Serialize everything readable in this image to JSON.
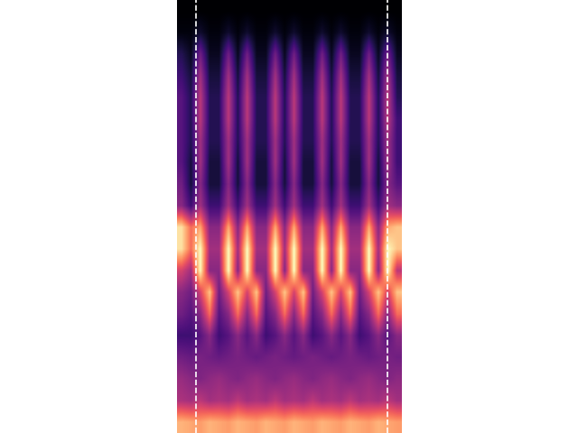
{
  "chart_data": {
    "type": "heatmap",
    "color": "magma",
    "tick_labels": false,
    "line_style": "dashed",
    "line_color": "white",
    "vlines": [
      1.5,
      22.0
    ],
    "cells": [
      [
        0.03,
        0.03,
        0.03,
        0.03,
        0.03,
        0.03,
        0.03,
        0.03,
        0.03,
        0.03,
        0.03,
        0.03,
        0.03,
        0.03,
        0.03,
        0.03,
        0.03,
        0.03,
        0.03,
        0.03,
        0.03,
        0.03,
        0.03,
        0.03
      ],
      [
        0.05,
        0.05,
        0.1,
        0.05,
        0.05,
        0.1,
        0.05,
        0.1,
        0.05,
        0.05,
        0.1,
        0.05,
        0.1,
        0.05,
        0.05,
        0.1,
        0.05,
        0.1,
        0.05,
        0.05,
        0.1,
        0.05,
        0.1,
        0.05
      ],
      [
        0.15,
        0.08,
        0.3,
        0.08,
        0.08,
        0.3,
        0.08,
        0.3,
        0.08,
        0.08,
        0.3,
        0.08,
        0.3,
        0.08,
        0.08,
        0.3,
        0.08,
        0.3,
        0.08,
        0.08,
        0.3,
        0.08,
        0.3,
        0.08
      ],
      [
        0.2,
        0.12,
        0.4,
        0.12,
        0.12,
        0.4,
        0.12,
        0.4,
        0.12,
        0.12,
        0.4,
        0.12,
        0.4,
        0.12,
        0.12,
        0.4,
        0.12,
        0.4,
        0.12,
        0.12,
        0.4,
        0.12,
        0.4,
        0.12
      ],
      [
        0.25,
        0.15,
        0.45,
        0.15,
        0.15,
        0.45,
        0.15,
        0.45,
        0.15,
        0.15,
        0.45,
        0.15,
        0.45,
        0.15,
        0.15,
        0.45,
        0.15,
        0.45,
        0.15,
        0.15,
        0.45,
        0.15,
        0.45,
        0.15
      ],
      [
        0.25,
        0.15,
        0.45,
        0.15,
        0.15,
        0.45,
        0.15,
        0.45,
        0.15,
        0.15,
        0.45,
        0.15,
        0.45,
        0.15,
        0.15,
        0.45,
        0.15,
        0.45,
        0.15,
        0.15,
        0.45,
        0.15,
        0.45,
        0.2
      ],
      [
        0.25,
        0.15,
        0.4,
        0.15,
        0.15,
        0.4,
        0.15,
        0.4,
        0.15,
        0.15,
        0.4,
        0.15,
        0.4,
        0.15,
        0.15,
        0.4,
        0.15,
        0.4,
        0.15,
        0.15,
        0.4,
        0.15,
        0.4,
        0.2
      ],
      [
        0.25,
        0.12,
        0.4,
        0.12,
        0.12,
        0.4,
        0.12,
        0.4,
        0.12,
        0.12,
        0.4,
        0.12,
        0.4,
        0.12,
        0.12,
        0.4,
        0.12,
        0.4,
        0.12,
        0.12,
        0.4,
        0.12,
        0.4,
        0.2
      ],
      [
        0.3,
        0.12,
        0.35,
        0.12,
        0.12,
        0.35,
        0.12,
        0.35,
        0.12,
        0.12,
        0.35,
        0.12,
        0.35,
        0.12,
        0.12,
        0.35,
        0.12,
        0.35,
        0.12,
        0.12,
        0.35,
        0.12,
        0.35,
        0.25
      ],
      [
        0.35,
        0.2,
        0.4,
        0.2,
        0.2,
        0.4,
        0.2,
        0.4,
        0.2,
        0.2,
        0.4,
        0.2,
        0.4,
        0.2,
        0.2,
        0.4,
        0.2,
        0.4,
        0.2,
        0.2,
        0.4,
        0.2,
        0.4,
        0.35
      ],
      [
        0.8,
        0.6,
        0.7,
        0.35,
        0.35,
        0.7,
        0.35,
        0.7,
        0.35,
        0.35,
        0.7,
        0.35,
        0.7,
        0.35,
        0.35,
        0.7,
        0.35,
        0.7,
        0.35,
        0.35,
        0.7,
        0.35,
        0.7,
        0.75
      ],
      [
        0.8,
        0.6,
        0.85,
        0.4,
        0.4,
        0.85,
        0.4,
        0.85,
        0.4,
        0.4,
        0.85,
        0.4,
        0.85,
        0.4,
        0.4,
        0.85,
        0.4,
        0.85,
        0.4,
        0.4,
        0.85,
        0.4,
        0.85,
        0.75
      ],
      [
        0.5,
        0.4,
        0.85,
        0.35,
        0.35,
        0.85,
        0.35,
        0.85,
        0.35,
        0.35,
        0.85,
        0.35,
        0.85,
        0.35,
        0.35,
        0.85,
        0.35,
        0.85,
        0.35,
        0.35,
        0.85,
        0.35,
        0.85,
        0.45
      ],
      [
        0.35,
        0.3,
        0.5,
        0.75,
        0.3,
        0.5,
        0.75,
        0.5,
        0.75,
        0.3,
        0.5,
        0.75,
        0.5,
        0.75,
        0.3,
        0.5,
        0.75,
        0.5,
        0.75,
        0.3,
        0.5,
        0.75,
        0.5,
        0.75
      ],
      [
        0.3,
        0.25,
        0.35,
        0.6,
        0.25,
        0.35,
        0.6,
        0.35,
        0.6,
        0.25,
        0.35,
        0.6,
        0.35,
        0.6,
        0.25,
        0.35,
        0.6,
        0.35,
        0.6,
        0.25,
        0.35,
        0.6,
        0.35,
        0.6
      ],
      [
        0.2,
        0.2,
        0.25,
        0.35,
        0.2,
        0.25,
        0.35,
        0.25,
        0.35,
        0.2,
        0.25,
        0.35,
        0.25,
        0.35,
        0.2,
        0.25,
        0.35,
        0.25,
        0.35,
        0.2,
        0.25,
        0.35,
        0.25,
        0.35
      ],
      [
        0.3,
        0.28,
        0.32,
        0.3,
        0.28,
        0.3,
        0.32,
        0.3,
        0.28,
        0.3,
        0.32,
        0.3,
        0.28,
        0.3,
        0.32,
        0.3,
        0.28,
        0.3,
        0.32,
        0.3,
        0.28,
        0.3,
        0.32,
        0.3
      ],
      [
        0.38,
        0.35,
        0.33,
        0.36,
        0.38,
        0.35,
        0.33,
        0.36,
        0.38,
        0.35,
        0.33,
        0.36,
        0.38,
        0.35,
        0.33,
        0.36,
        0.38,
        0.35,
        0.33,
        0.36,
        0.38,
        0.35,
        0.33,
        0.36
      ],
      [
        0.42,
        0.4,
        0.45,
        0.4,
        0.42,
        0.4,
        0.45,
        0.4,
        0.42,
        0.4,
        0.45,
        0.4,
        0.42,
        0.4,
        0.45,
        0.4,
        0.42,
        0.4,
        0.45,
        0.4,
        0.42,
        0.4,
        0.45,
        0.4
      ],
      [
        0.72,
        0.7,
        0.68,
        0.72,
        0.7,
        0.68,
        0.72,
        0.7,
        0.68,
        0.72,
        0.7,
        0.68,
        0.72,
        0.7,
        0.68,
        0.72,
        0.7,
        0.68,
        0.72,
        0.7,
        0.68,
        0.72,
        0.7,
        0.68
      ]
    ]
  }
}
